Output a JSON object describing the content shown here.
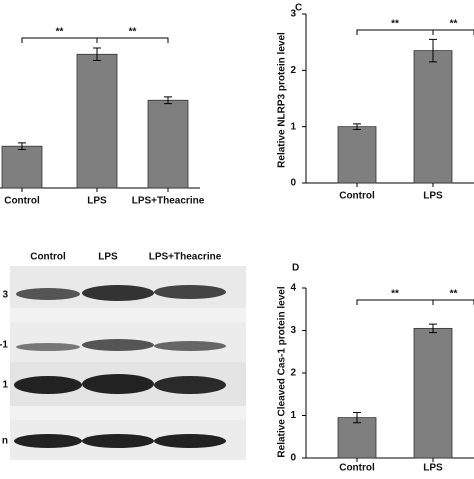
{
  "chart_data": [
    {
      "type": "bar",
      "categories": [
        "Control",
        "LPS",
        "LPS+Theacrine"
      ],
      "values": [
        1,
        3.2,
        2.1
      ],
      "errors": [
        0.08,
        0.15,
        0.08
      ],
      "color": "#7f7f7f",
      "annotations": [
        "**",
        "**"
      ]
    },
    {
      "type": "bar",
      "panel": "C",
      "ylabel": "Relative NLRP3 protein level",
      "categories": [
        "Control",
        "LPS"
      ],
      "values": [
        1.0,
        2.35
      ],
      "errors": [
        0.05,
        0.2
      ],
      "color": "#7f7f7f",
      "ylim": [
        0,
        3
      ],
      "yticks": [
        0,
        1,
        2,
        3
      ],
      "annotations": [
        "**",
        "**"
      ]
    },
    {
      "type": "bar",
      "panel": "D",
      "ylabel": "Relative Cleaved Cas-1 protein level",
      "categories": [
        "Control",
        "LPS"
      ],
      "values": [
        0.95,
        3.05
      ],
      "errors": [
        0.12,
        0.1
      ],
      "color": "#7f7f7f",
      "ylim": [
        0,
        4
      ],
      "yticks": [
        0,
        1,
        2,
        3,
        4
      ],
      "annotations": [
        "**",
        "**"
      ]
    }
  ],
  "blot": {
    "columns": [
      "Control",
      "LPS",
      "LPS+Theacrine"
    ],
    "rows": [
      "3",
      "-1",
      "1",
      "n"
    ]
  }
}
